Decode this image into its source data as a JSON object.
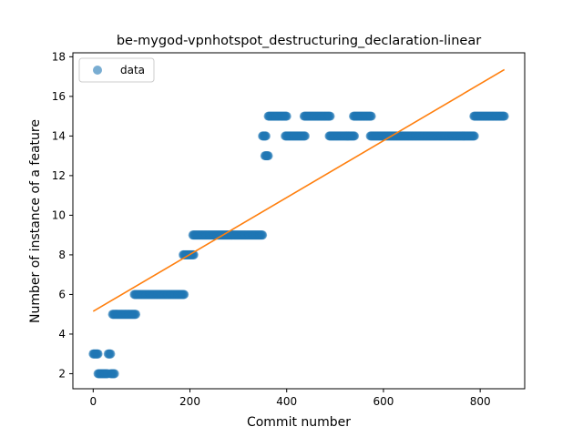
{
  "chart_data": {
    "type": "scatter",
    "title": "be-mygod-vpnhotspot_destructuring_declaration-linear",
    "xlabel": "Commit number",
    "ylabel": "Number of instance of a feature",
    "xlim": [
      -42,
      892
    ],
    "ylim": [
      1.24,
      18.2
    ],
    "xticks": [
      0,
      200,
      400,
      600,
      800
    ],
    "yticks": [
      2,
      4,
      6,
      8,
      10,
      12,
      14,
      16,
      18
    ],
    "grid": false,
    "legend": {
      "position": "top-left",
      "entries": [
        "data"
      ]
    },
    "colors": {
      "data": "#1f77b4",
      "fit": "#ff7f0e"
    },
    "series": [
      {
        "name": "data",
        "segments": [
          {
            "x_start": 0,
            "x_end": 10,
            "y": 3
          },
          {
            "x_start": 10,
            "x_end": 30,
            "y": 2
          },
          {
            "x_start": 31,
            "x_end": 36,
            "y": 3
          },
          {
            "x_start": 36,
            "x_end": 44,
            "y": 2
          },
          {
            "x_start": 40,
            "x_end": 88,
            "y": 5
          },
          {
            "x_start": 85,
            "x_end": 188,
            "y": 6
          },
          {
            "x_start": 186,
            "x_end": 208,
            "y": 8
          },
          {
            "x_start": 206,
            "x_end": 350,
            "y": 9
          },
          {
            "x_start": 350,
            "x_end": 357,
            "y": 14
          },
          {
            "x_start": 355,
            "x_end": 362,
            "y": 13
          },
          {
            "x_start": 362,
            "x_end": 400,
            "y": 15
          },
          {
            "x_start": 397,
            "x_end": 438,
            "y": 14
          },
          {
            "x_start": 436,
            "x_end": 490,
            "y": 15
          },
          {
            "x_start": 488,
            "x_end": 540,
            "y": 14
          },
          {
            "x_start": 538,
            "x_end": 575,
            "y": 15
          },
          {
            "x_start": 573,
            "x_end": 788,
            "y": 14
          },
          {
            "x_start": 787,
            "x_end": 850,
            "y": 15
          }
        ]
      },
      {
        "name": "",
        "type": "line",
        "x": [
          0,
          850
        ],
        "y": [
          5.15,
          17.35
        ]
      }
    ]
  }
}
